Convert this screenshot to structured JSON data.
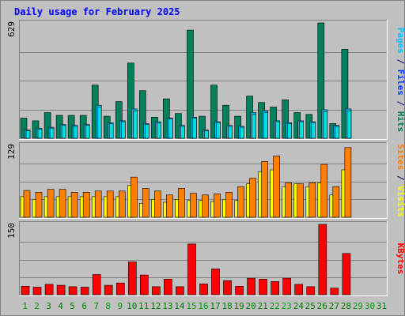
{
  "chart_data": {
    "type": "bar",
    "title": "Daily usage for February 2025",
    "x": {
      "days": [
        1,
        2,
        3,
        4,
        5,
        6,
        7,
        8,
        9,
        10,
        11,
        12,
        13,
        14,
        15,
        16,
        17,
        18,
        19,
        20,
        21,
        22,
        23,
        24,
        25,
        26,
        27,
        28,
        29,
        30,
        31
      ],
      "weekend_days": [
        1,
        2,
        8,
        9,
        15,
        16,
        22,
        23,
        29,
        30
      ],
      "data_days": 28
    },
    "panels": [
      {
        "id": "hits",
        "ymax_label": "629",
        "ymax": 629,
        "grid": true,
        "series": [
          {
            "name": "Hits",
            "color": "#00805c",
            "values": [
              110,
              95,
              140,
              125,
              125,
              125,
              290,
              120,
              200,
              410,
              260,
              115,
              215,
              135,
              590,
              120,
              290,
              180,
              120,
              230,
              195,
              170,
              210,
              140,
              130,
              629,
              80,
              485
            ]
          },
          {
            "name": "Files",
            "color": "#00c0ff",
            "values": [
              45,
              55,
              60,
              75,
              70,
              75,
              180,
              85,
              95,
              160,
              80,
              90,
              110,
              70,
              115,
              45,
              90,
              70,
              65,
              140,
              150,
              95,
              85,
              95,
              90,
              155,
              70,
              160
            ]
          },
          {
            "name": "Pages",
            "color": "#00e0e0",
            "values": [
              40,
              50,
              55,
              70,
              65,
              70,
              170,
              80,
              90,
              150,
              75,
              85,
              105,
              65,
              110,
              40,
              85,
              65,
              60,
              130,
              140,
              90,
              80,
              90,
              85,
              145,
              65,
              150
            ]
          }
        ],
        "axis_label": [
          {
            "text": "Pages",
            "color": "#00c0ff"
          },
          {
            "text": " / ",
            "color": "#000080"
          },
          {
            "text": "Files",
            "color": "#0040ff"
          },
          {
            "text": " / ",
            "color": "#000080"
          },
          {
            "text": "Hits",
            "color": "#00805c"
          }
        ]
      },
      {
        "id": "visits",
        "ymax_label": "129",
        "ymax": 129,
        "grid": true,
        "series": [
          {
            "name": "Visits",
            "color": "#ffff00",
            "values": [
              37,
              32,
              37,
              37,
              37,
              37,
              37,
              37,
              37,
              57,
              25,
              32,
              27,
              32,
              30,
              30,
              28,
              32,
              30,
              60,
              82,
              85,
              55,
              60,
              55,
              62,
              40,
              85
            ]
          },
          {
            "name": "Sites",
            "color": "#ff8000",
            "values": [
              48,
              45,
              50,
              50,
              45,
              45,
              47,
              47,
              47,
              72,
              52,
              47,
              40,
              52,
              43,
              40,
              42,
              45,
              55,
              70,
              100,
              110,
              62,
              60,
              62,
              95,
              55,
              125
            ]
          }
        ],
        "axis_label": [
          {
            "text": "Sites",
            "color": "#ff8000"
          },
          {
            "text": " / ",
            "color": "#000080"
          },
          {
            "text": "Visits",
            "color": "#ffff00"
          }
        ]
      },
      {
        "id": "kbytes",
        "ymax_label": "150",
        "ymax": 150,
        "grid": true,
        "series": [
          {
            "name": "KBytes",
            "color": "#ff0000",
            "values": [
              18,
              16,
              22,
              20,
              17,
              16,
              43,
              20,
              25,
              70,
              42,
              17,
              33,
              17,
              108,
              23,
              55,
              30,
              18,
              35,
              33,
              28,
              35,
              22,
              17,
              150,
              14,
              88
            ]
          }
        ],
        "axis_label": [
          {
            "text": "KBytes",
            "color": "#ff0000"
          }
        ]
      }
    ],
    "colors": {
      "background": "#c0c0c0",
      "frame": "#ffffff",
      "title": "#0000ff",
      "day_weekday": "#008000",
      "day_weekend": "#00a000",
      "grid": "#808080"
    }
  }
}
